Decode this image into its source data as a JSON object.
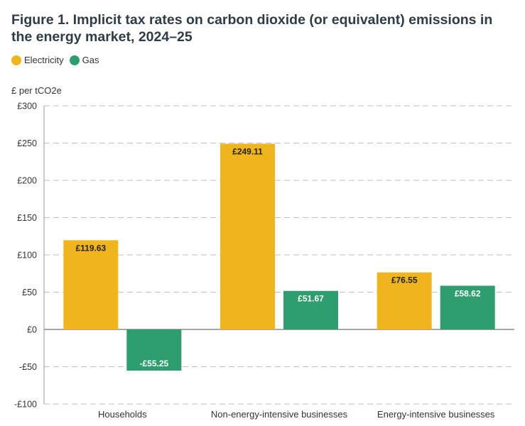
{
  "title": "Figure 1. Implicit tax rates on carbon dioxide (or equivalent) emissions in the energy market, 2024–25",
  "legend": [
    {
      "name": "Electricity",
      "color": "#f0b51c"
    },
    {
      "name": "Gas",
      "color": "#2e9e6e"
    }
  ],
  "chart_data": {
    "type": "bar",
    "title": "Figure 1. Implicit tax rates on carbon dioxide (or equivalent) emissions in the energy market, 2024–25",
    "ylabel": "£ per tCO2e",
    "xlabel": "",
    "categories": [
      "Households",
      "Non-energy-intensive businesses",
      "Energy-intensive businesses"
    ],
    "series": [
      {
        "name": "Electricity",
        "color": "#f0b51c",
        "values": [
          119.63,
          249.11,
          76.55
        ],
        "labels": [
          "£119.63",
          "£249.11",
          "£76.55"
        ],
        "label_color": "#222222"
      },
      {
        "name": "Gas",
        "color": "#2e9e6e",
        "values": [
          -55.25,
          51.67,
          58.62
        ],
        "labels": [
          "-£55.25",
          "£51.67",
          "£58.62"
        ],
        "label_color": "#ffffff"
      }
    ],
    "ylim": [
      -100,
      300
    ],
    "yticks": [
      300,
      250,
      200,
      150,
      100,
      50,
      0,
      -50,
      -100
    ],
    "ytick_labels": [
      "£300",
      "£250",
      "£200",
      "£150",
      "£100",
      "£50",
      "£0",
      "-£50",
      "-£100"
    ],
    "grid": true,
    "legend_position": "top-left"
  }
}
